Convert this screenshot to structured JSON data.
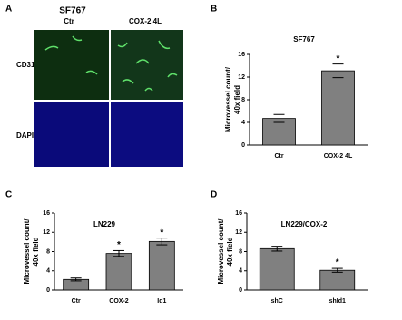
{
  "panel_a": {
    "letter": "A",
    "title": "SF767",
    "columns": [
      "Ctr",
      "COX-2 4L"
    ],
    "rows": [
      "CD31",
      "DAPI"
    ]
  },
  "chart_data": [
    {
      "type": "bar",
      "panel": "B",
      "title": "SF767",
      "ylabel": [
        "Microvessel count/",
        "40x field"
      ],
      "categories": [
        "Ctr",
        "COX-2 4L"
      ],
      "values": [
        4.7,
        13.1
      ],
      "errors": [
        0.7,
        1.2
      ],
      "color": "#808080",
      "ylim": [
        0,
        16
      ],
      "yticks": [
        0,
        4,
        8,
        12,
        16
      ],
      "annotations": [
        {
          "category": "COX-2 4L",
          "text": "*"
        }
      ]
    },
    {
      "type": "bar",
      "panel": "C",
      "title": "LN229",
      "ylabel": [
        "Microvessel count/",
        "40x field"
      ],
      "categories": [
        "Ctr",
        "COX-2",
        "Id1"
      ],
      "values": [
        2.2,
        7.6,
        10.1
      ],
      "errors": [
        0.3,
        0.6,
        0.7
      ],
      "color": "#808080",
      "ylim": [
        0,
        16
      ],
      "yticks": [
        0,
        4,
        8,
        12,
        16
      ],
      "annotations": [
        {
          "category": "COX-2",
          "text": "*"
        },
        {
          "category": "Id1",
          "text": "*"
        }
      ]
    },
    {
      "type": "bar",
      "panel": "D",
      "title": "LN229/COX-2",
      "ylabel": [
        "Microvessel count/",
        "40x field"
      ],
      "categories": [
        "shC",
        "shId1"
      ],
      "values": [
        8.6,
        4.1
      ],
      "errors": [
        0.5,
        0.4
      ],
      "color": "#808080",
      "ylim": [
        0,
        16
      ],
      "yticks": [
        0,
        4,
        8,
        12,
        16
      ],
      "annotations": [
        {
          "category": "shId1",
          "text": "*"
        }
      ]
    }
  ]
}
